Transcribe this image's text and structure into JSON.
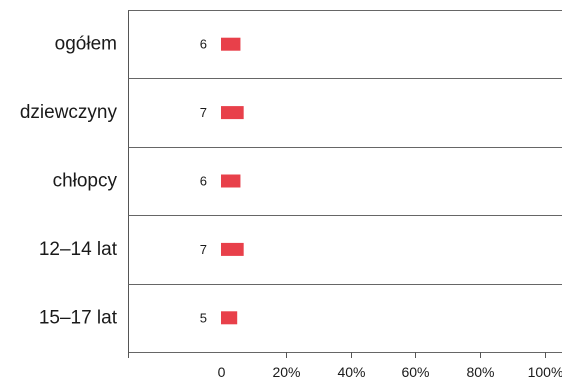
{
  "chart_data": {
    "type": "bar",
    "orientation": "horizontal",
    "categories": [
      "ogółem",
      "dziewczyny",
      "chłopcy",
      "12–14 lat",
      "15–17 lat"
    ],
    "values": [
      6,
      7,
      6,
      7,
      5
    ],
    "value_labels": [
      "6",
      "7",
      "6",
      "7",
      "5"
    ],
    "xlim": [
      0,
      100
    ],
    "xticks": [
      "0",
      "20%",
      "40%",
      "60%",
      "80%",
      "100%"
    ],
    "bar_color": "#e8404a",
    "grid": "horizontal separators between categories",
    "legend": "none"
  }
}
